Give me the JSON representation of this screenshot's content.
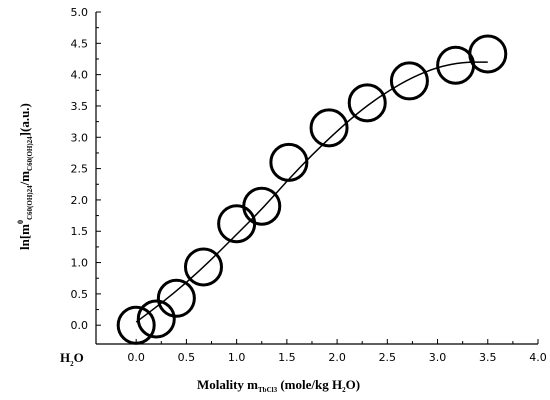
{
  "chart_data": {
    "type": "scatter",
    "title": "",
    "xlim": [
      -0.4,
      4.0
    ],
    "ylim": [
      -0.3,
      5.0
    ],
    "x_ticks": [
      0.0,
      0.5,
      1.0,
      1.5,
      2.0,
      2.5,
      3.0,
      3.5,
      4.0
    ],
    "y_ticks": [
      0.0,
      0.5,
      1.0,
      1.5,
      2.0,
      2.5,
      3.0,
      3.5,
      4.0,
      4.5,
      5.0
    ],
    "x_tick_labels": [
      "0.0",
      "0.5",
      "1.0",
      "1.5",
      "2.0",
      "2.5",
      "3.0",
      "3.5",
      "4.0"
    ],
    "y_tick_labels": [
      "0.0",
      "0.5",
      "1.0",
      "1.5",
      "2.0",
      "2.5",
      "3.0",
      "3.5",
      "4.0",
      "4.5",
      "5.0"
    ],
    "x_extra_label": {
      "main": "H",
      "sub": "2",
      "tail": "O"
    },
    "xlabel": {
      "main": "Molality m",
      "sub": "TbCl3",
      "tail": " (mole/kg H",
      "sub2": "2",
      "tail2": "O)"
    },
    "ylabel": {
      "main": "ln[m",
      "sup": "0",
      "sub": "C60(OH)24",
      "mid": "/m",
      "sub2": "C60(OH)24",
      "tail": "](a.u.)"
    },
    "grid": false,
    "legend": "none",
    "series": [
      {
        "kind": "points",
        "marker": "open-circle",
        "x": [
          0.0,
          0.2,
          0.4,
          0.67,
          1.0,
          1.25,
          1.52,
          1.92,
          2.3,
          2.72,
          3.18,
          3.5
        ],
        "y": [
          0.0,
          0.1,
          0.43,
          0.93,
          1.62,
          1.9,
          2.6,
          3.15,
          3.55,
          3.9,
          4.15,
          4.33
        ]
      },
      {
        "kind": "fit-line",
        "x": [
          0.0,
          0.25,
          0.5,
          0.75,
          1.0,
          1.25,
          1.5,
          1.75,
          2.0,
          2.25,
          2.5,
          2.75,
          3.0,
          3.25,
          3.5
        ],
        "y": [
          0.05,
          0.35,
          0.68,
          1.05,
          1.45,
          1.85,
          2.3,
          2.72,
          3.1,
          3.45,
          3.73,
          3.96,
          4.12,
          4.2,
          4.2
        ]
      }
    ],
    "colors": {
      "axis": "#000000",
      "marker": "#000000",
      "line": "#000000"
    }
  }
}
